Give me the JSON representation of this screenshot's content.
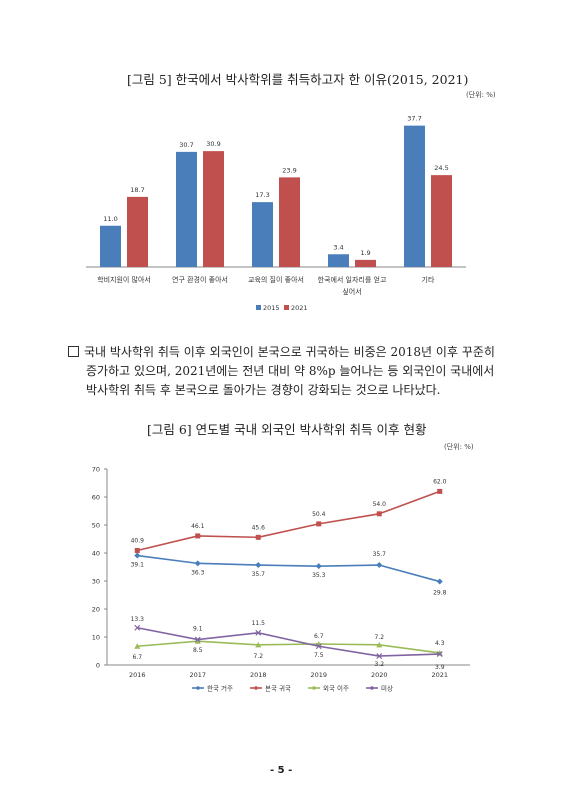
{
  "fig5": {
    "title": "[그림 5] 한국에서 박사학위를 취득하고자 한 이유(2015, 2021)",
    "unit": "(단위: %)"
  },
  "paragraph": {
    "line1": "국내 박사학위 취득 이후 외국인이 본국으로 귀국하는 비중은 2018년 이후 꾸준히",
    "line2": "증가하고 있으며, 2021년에는 전년 대비 약 8%p 늘어나는 등 외국인이 국내에서",
    "line3": "박사학위 취득 후 본국으로 돌아가는 경향이 강화되는 것으로 나타났다."
  },
  "fig6": {
    "title": "[그림 6] 연도별 국내 외국인 박사학위 취득 이후 현황",
    "unit": "(단위: %)"
  },
  "page_number": "- 5 -",
  "colors": {
    "blue": "#4a7ebb",
    "red": "#c0504d",
    "green": "#9bbb59",
    "purple": "#8064a2"
  },
  "chart_data": [
    {
      "type": "bar",
      "categories": [
        "학비지원이 많아서",
        "연구 환경이 좋아서",
        "교육의 질이 좋아서",
        "한국에서 일자리를 얻고 싶어서",
        "기타"
      ],
      "series": [
        {
          "name": "2015",
          "values": [
            11.0,
            30.7,
            17.3,
            3.4,
            37.7
          ]
        },
        {
          "name": "2021",
          "values": [
            18.7,
            30.9,
            23.9,
            1.9,
            24.5
          ]
        }
      ],
      "ylim": [
        0,
        40
      ],
      "legend": "bottom",
      "grid": false
    },
    {
      "type": "line",
      "x": [
        "2016",
        "2017",
        "2018",
        "2019",
        "2020",
        "2021"
      ],
      "series": [
        {
          "name": "한국 거주",
          "values": [
            39.1,
            36.3,
            35.7,
            35.3,
            35.7,
            29.8
          ]
        },
        {
          "name": "본국 귀국",
          "values": [
            40.9,
            46.1,
            45.6,
            50.4,
            54.0,
            62.0
          ]
        },
        {
          "name": "외국 이주",
          "values": [
            6.7,
            8.5,
            7.2,
            7.5,
            7.2,
            4.3
          ]
        },
        {
          "name": "미상",
          "values": [
            13.3,
            9.1,
            11.5,
            6.7,
            3.2,
            3.9
          ]
        }
      ],
      "yticks": [
        "0",
        "10",
        "20",
        "30",
        "40",
        "50",
        "60",
        "70"
      ],
      "ylim": [
        0,
        70
      ],
      "legend": "bottom",
      "grid": false
    }
  ]
}
